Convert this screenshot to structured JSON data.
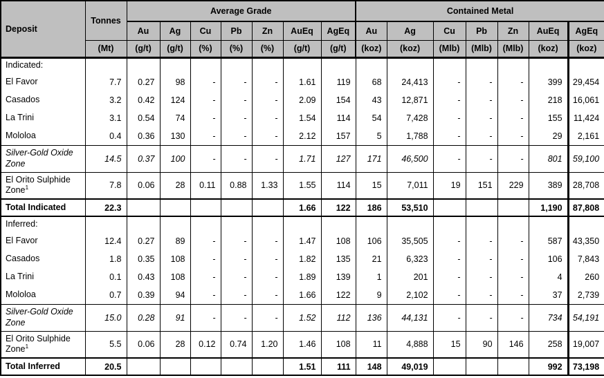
{
  "colors": {
    "header_bg": "#bfbfbf",
    "border": "#000000",
    "text": "#000000"
  },
  "table": {
    "header": {
      "deposit": "Deposit",
      "tonnes": "Tonnes",
      "tonnes_unit": "(Mt)",
      "groups": [
        {
          "label": "Average Grade",
          "cols": [
            {
              "label": "Au",
              "unit": "(g/t)"
            },
            {
              "label": "Ag",
              "unit": "(g/t)"
            },
            {
              "label": "Cu",
              "unit": "(%)"
            },
            {
              "label": "Pb",
              "unit": "(%)"
            },
            {
              "label": "Zn",
              "unit": "(%)"
            },
            {
              "label": "AuEq",
              "unit": "(g/t)"
            },
            {
              "label": "AgEq",
              "unit": "(g/t)"
            }
          ]
        },
        {
          "label": "Contained Metal",
          "cols": [
            {
              "label": "Au",
              "unit": "(koz)"
            },
            {
              "label": "Ag",
              "unit": "(koz)"
            },
            {
              "label": "Cu",
              "unit": "(Mlb)"
            },
            {
              "label": "Pb",
              "unit": "(Mlb)"
            },
            {
              "label": "Zn",
              "unit": "(Mlb)"
            },
            {
              "label": "AuEq",
              "unit": "(koz)"
            },
            {
              "label": "AgEq",
              "unit": "(koz)"
            }
          ]
        }
      ]
    },
    "rows": [
      {
        "type": "section",
        "deposit": "Indicated:",
        "cells": []
      },
      {
        "type": "data",
        "deposit": "El Favor",
        "cells": [
          "7.7",
          "0.27",
          "98",
          "-",
          "-",
          "-",
          "1.61",
          "119",
          "68",
          "24,413",
          "-",
          "-",
          "-",
          "399",
          "29,454"
        ]
      },
      {
        "type": "data",
        "deposit": "Casados",
        "cells": [
          "3.2",
          "0.42",
          "124",
          "-",
          "-",
          "-",
          "2.09",
          "154",
          "43",
          "12,871",
          "-",
          "-",
          "-",
          "218",
          "16,061"
        ]
      },
      {
        "type": "data",
        "deposit": "La Trini",
        "cells": [
          "3.1",
          "0.54",
          "74",
          "-",
          "-",
          "-",
          "1.54",
          "114",
          "54",
          "7,428",
          "-",
          "-",
          "-",
          "155",
          "11,424"
        ]
      },
      {
        "type": "data",
        "deposit": "Mololoa",
        "cells": [
          "0.4",
          "0.36",
          "130",
          "-",
          "-",
          "-",
          "2.12",
          "157",
          "5",
          "1,788",
          "-",
          "-",
          "-",
          "29",
          "2,161"
        ]
      },
      {
        "type": "data",
        "deposit": "Silver-Gold Oxide Zone",
        "italic": true,
        "sep": true,
        "tall": true,
        "cells": [
          "14.5",
          "0.37",
          "100",
          "-",
          "-",
          "-",
          "1.71",
          "127",
          "171",
          "46,500",
          "-",
          "-",
          "-",
          "801",
          "59,100"
        ]
      },
      {
        "type": "data",
        "deposit": "El Orito Sulphide Zone",
        "sup": "1",
        "sep": true,
        "tall": true,
        "cells": [
          "7.8",
          "0.06",
          "28",
          "0.11",
          "0.88",
          "1.33",
          "1.55",
          "114",
          "15",
          "7,011",
          "19",
          "151",
          "229",
          "389",
          "28,708"
        ]
      },
      {
        "type": "total",
        "deposit": "Total Indicated",
        "cells": [
          "22.3",
          "",
          "",
          "",
          "",
          "",
          "1.66",
          "122",
          "186",
          "53,510",
          "",
          "",
          "",
          "1,190",
          "87,808"
        ]
      },
      {
        "type": "section",
        "deposit": "Inferred:",
        "cells": []
      },
      {
        "type": "data",
        "deposit": "El Favor",
        "cells": [
          "12.4",
          "0.27",
          "89",
          "-",
          "-",
          "-",
          "1.47",
          "108",
          "106",
          "35,505",
          "-",
          "-",
          "-",
          "587",
          "43,350"
        ]
      },
      {
        "type": "data",
        "deposit": "Casados",
        "cells": [
          "1.8",
          "0.35",
          "108",
          "-",
          "-",
          "-",
          "1.82",
          "135",
          "21",
          "6,323",
          "-",
          "-",
          "-",
          "106",
          "7,843"
        ]
      },
      {
        "type": "data",
        "deposit": "La Trini",
        "cells": [
          "0.1",
          "0.43",
          "108",
          "-",
          "-",
          "-",
          "1.89",
          "139",
          "1",
          "201",
          "-",
          "-",
          "-",
          "4",
          "260"
        ]
      },
      {
        "type": "data",
        "deposit": "Mololoa",
        "cells": [
          "0.7",
          "0.39",
          "94",
          "-",
          "-",
          "-",
          "1.66",
          "122",
          "9",
          "2,102",
          "-",
          "-",
          "-",
          "37",
          "2,739"
        ]
      },
      {
        "type": "data",
        "deposit": "Silver-Gold Oxide Zone",
        "italic": true,
        "sep": true,
        "tall": true,
        "cells": [
          "15.0",
          "0.28",
          "91",
          "-",
          "-",
          "-",
          "1.52",
          "112",
          "136",
          "44,131",
          "-",
          "-",
          "-",
          "734",
          "54,191"
        ]
      },
      {
        "type": "data",
        "deposit": "El Orito Sulphide Zone",
        "sup": "1",
        "sep": true,
        "tall": true,
        "cells": [
          "5.5",
          "0.06",
          "28",
          "0.12",
          "0.74",
          "1.20",
          "1.46",
          "108",
          "11",
          "4,888",
          "15",
          "90",
          "146",
          "258",
          "19,007"
        ]
      },
      {
        "type": "total",
        "deposit": "Total Inferred",
        "cells": [
          "20.5",
          "",
          "",
          "",
          "",
          "",
          "1.51",
          "111",
          "148",
          "49,019",
          "",
          "",
          "",
          "992",
          "73,198"
        ]
      }
    ]
  }
}
